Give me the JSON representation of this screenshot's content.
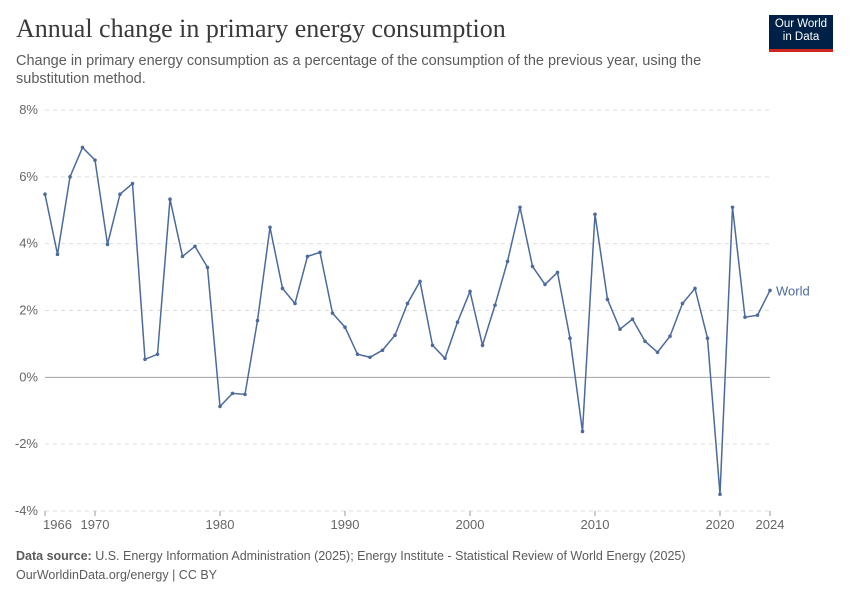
{
  "header": {
    "title": "Annual change in primary energy consumption",
    "subtitle": "Change in primary energy consumption as a percentage of the consumption of the previous year, using the substitution method.",
    "logo": "Our World in Data"
  },
  "footer": {
    "source_label": "Data source:",
    "source": "U.S. Energy Information Administration (2025); Energy Institute - Statistical Review of World Energy (2025)",
    "link": "OurWorldinData.org/energy | CC BY"
  },
  "chart_data": {
    "type": "line",
    "title": "Annual change in primary energy consumption",
    "xlabel": "",
    "ylabel": "",
    "xlim": [
      1966,
      2024
    ],
    "ylim": [
      -4,
      8
    ],
    "y_ticks": [
      "-4%",
      "-2%",
      "0%",
      "2%",
      "4%",
      "6%",
      "8%"
    ],
    "y_tick_values": [
      -4,
      -2,
      0,
      2,
      4,
      6,
      8
    ],
    "x_ticks": [
      "1966",
      "1970",
      "1980",
      "1990",
      "2000",
      "2010",
      "2020",
      "2024"
    ],
    "x_tick_values": [
      1966,
      1970,
      1980,
      1990,
      2000,
      2010,
      2020,
      2024
    ],
    "grid": "horizontal dashed",
    "legend": "end-of-line label",
    "series": [
      {
        "name": "World",
        "color": "#4c6a9c",
        "x": [
          1966,
          1967,
          1968,
          1969,
          1970,
          1971,
          1972,
          1973,
          1974,
          1975,
          1976,
          1977,
          1978,
          1979,
          1980,
          1981,
          1982,
          1983,
          1984,
          1985,
          1986,
          1987,
          1988,
          1989,
          1990,
          1991,
          1992,
          1993,
          1994,
          1995,
          1996,
          1997,
          1998,
          1999,
          2000,
          2001,
          2002,
          2003,
          2004,
          2005,
          2006,
          2007,
          2008,
          2009,
          2010,
          2011,
          2012,
          2013,
          2014,
          2015,
          2016,
          2017,
          2018,
          2019,
          2020,
          2021,
          2022,
          2023,
          2024
        ],
        "values": [
          5.48,
          3.68,
          6.0,
          6.88,
          6.5,
          3.98,
          5.48,
          5.8,
          0.54,
          0.69,
          5.33,
          3.62,
          3.92,
          3.29,
          -0.87,
          -0.48,
          -0.51,
          1.7,
          4.49,
          2.66,
          2.21,
          3.62,
          3.74,
          1.92,
          1.5,
          0.69,
          0.6,
          0.81,
          1.26,
          2.21,
          2.87,
          0.96,
          0.57,
          1.65,
          2.57,
          0.96,
          2.16,
          3.47,
          5.09,
          3.32,
          2.78,
          3.14,
          1.17,
          -1.62,
          4.88,
          2.33,
          1.44,
          1.74,
          1.08,
          0.75,
          1.23,
          2.21,
          2.66,
          1.17,
          -3.5,
          5.09,
          1.8,
          1.86,
          2.6
        ]
      }
    ]
  }
}
